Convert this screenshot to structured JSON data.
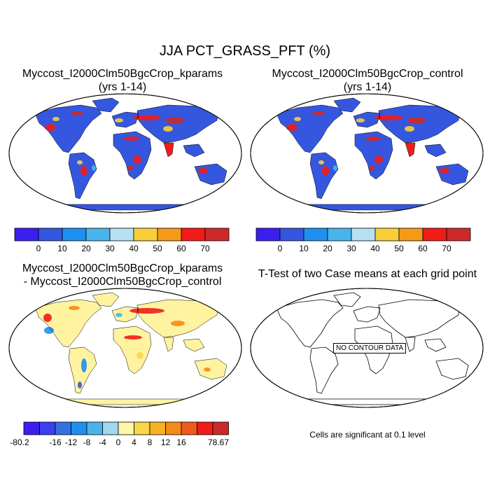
{
  "figure": {
    "title": "JJA PCT_GRASS_PFT (%)"
  },
  "panels": {
    "kparams": {
      "title_line1": "Myccost_I2000Clm50BgcCrop_kparams",
      "title_line2": "(yrs 1-14)"
    },
    "control": {
      "title_line1": "Myccost_I2000Clm50BgcCrop_control",
      "title_line2": "(yrs 1-14)"
    },
    "difference": {
      "title_line1": "Myccost_I2000Clm50BgcCrop_kparams",
      "title_line2": "- Myccost_I2000Clm50BgcCrop_control"
    },
    "ttest": {
      "title": "T-Test of two Case means at each grid point",
      "no_data_label": "NO CONTOUR DATA",
      "note": "Cells are significant at 0.1 level"
    }
  },
  "colorbars": {
    "absolute": {
      "colors": [
        "#3b1ff0",
        "#3557e0",
        "#1f8ff0",
        "#49b4ec",
        "#b9e0f2",
        "#f8cf3a",
        "#f59a18",
        "#f01c18",
        "#cc2a2a"
      ],
      "labels": [
        "0",
        "10",
        "20",
        "30",
        "40",
        "50",
        "60",
        "70"
      ]
    },
    "difference": {
      "colors": [
        "#3b1ff0",
        "#3a3ff0",
        "#3570e2",
        "#1f8ff0",
        "#49b4ec",
        "#9fd8ef",
        "#fff6a8",
        "#f8d64a",
        "#f6b324",
        "#f58a18",
        "#f05a1a",
        "#f01c18",
        "#cc2a2a"
      ],
      "labels": [
        "-80.2",
        "-16",
        "-12",
        "-8",
        "-4",
        "0",
        "4",
        "8",
        "12",
        "16",
        "78.67"
      ]
    }
  },
  "colors": {
    "ocean": "#ffffff",
    "antarctica_abs": "#3557e0",
    "antarctica_diff": "#fff3a0",
    "land_low": "#3557e0",
    "land_high": "#f01c18",
    "land_mid": "#f8cf3a",
    "diff_neutral": "#fff3a0"
  }
}
